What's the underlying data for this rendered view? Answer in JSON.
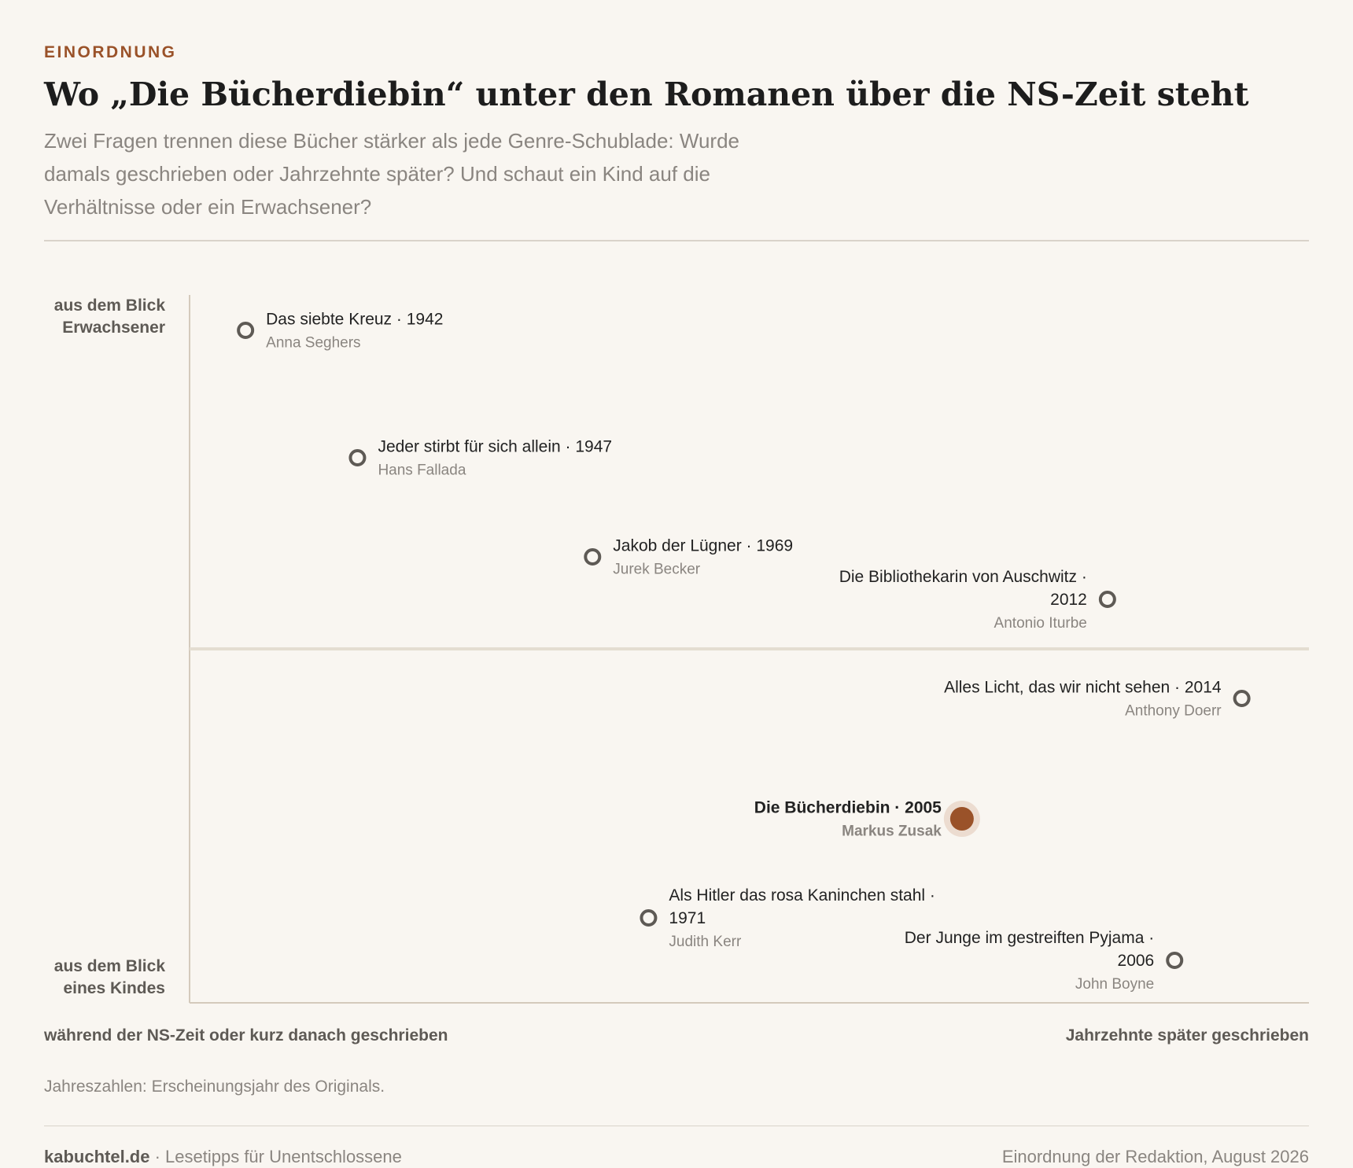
{
  "header": {
    "kicker": "EINORDNUNG",
    "title": "Wo „Die Bücherdiebin“ unter den Romanen über die NS-Zeit steht",
    "subtitle": "Zwei Fragen trennen diese Bücher stärker als jede Genre-Schublade: Wurde damals geschrieben oder Jahrzehnte später? Und schaut ein Kind auf die Verhältnisse oder ein Erwachsener?"
  },
  "chart_data": {
    "type": "scatter",
    "x_axis": {
      "label_left": "während der NS-Zeit oder kurz danach geschrieben",
      "label_right": "Jahrzehnte später geschrieben",
      "range": [
        0,
        100
      ]
    },
    "y_axis": {
      "label_top": "aus dem Blick Erwachsener",
      "label_bottom": "aus dem Blick eines Kindes",
      "range": [
        0,
        100
      ]
    },
    "grid": false,
    "points": [
      {
        "title": "Das siebte Kreuz",
        "year": "1942",
        "author": "Anna Seghers",
        "x": 5,
        "y": 95,
        "highlight": false,
        "label_side": "right"
      },
      {
        "title": "Jeder stirbt für sich allein",
        "year": "1947",
        "author": "Hans Fallada",
        "x": 15,
        "y": 77,
        "highlight": false,
        "label_side": "right"
      },
      {
        "title": "Jakob der Lügner",
        "year": "1969",
        "author": "Jurek Becker",
        "x": 36,
        "y": 63,
        "highlight": false,
        "label_side": "right"
      },
      {
        "title": "Die Bibliothekarin von Auschwitz",
        "year": "2012",
        "author": "Antonio Iturbe",
        "x": 82,
        "y": 57,
        "highlight": false,
        "label_side": "left"
      },
      {
        "title": "Alles Licht, das wir nicht sehen",
        "year": "2014",
        "author": "Anthony Doerr",
        "x": 94,
        "y": 43,
        "highlight": false,
        "label_side": "left"
      },
      {
        "title": "Die Bücherdiebin",
        "year": "2005",
        "author": "Markus Zusak",
        "x": 69,
        "y": 26,
        "highlight": true,
        "label_side": "left"
      },
      {
        "title": "Als Hitler das rosa Kaninchen stahl",
        "year": "1971",
        "author": "Judith Kerr",
        "x": 41,
        "y": 12,
        "highlight": false,
        "label_side": "right"
      },
      {
        "title": "Der Junge im gestreiften Pyjama",
        "year": "2006",
        "author": "John Boyne",
        "x": 88,
        "y": 6,
        "highlight": false,
        "label_side": "left"
      }
    ],
    "colors": {
      "highlight": "#9a5229",
      "highlight_halo": "#ecdcd0",
      "marker": "#5e5a55",
      "axis": "#d4cabc",
      "midline": "#e4ddd1",
      "text": "#222222",
      "muted": "#8a8580"
    }
  },
  "note": "Jahreszahlen: Erscheinungsjahr des Originals.",
  "footer": {
    "brand": "kabuchtel.de",
    "tagline": " · Lesetipps für Unentschlossene",
    "credit": "Einordnung der Redaktion, August 2026"
  }
}
